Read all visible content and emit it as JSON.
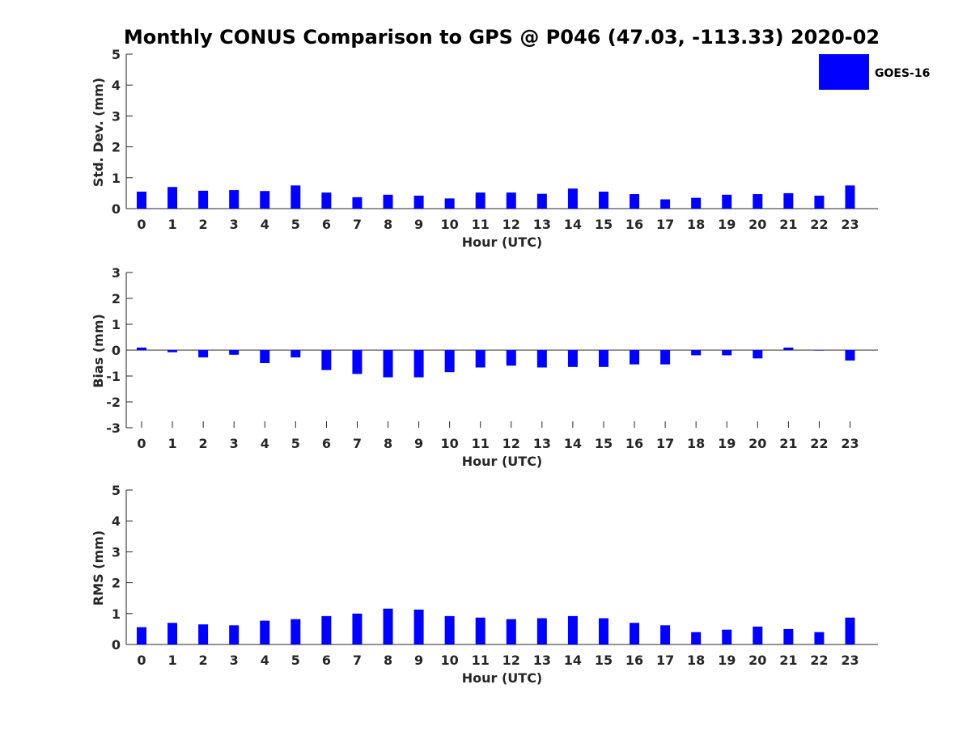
{
  "title": "Monthly CONUS Comparison to GPS @ P046 (47.03, -113.33) 2020-02",
  "legend": {
    "label": "GOES-16",
    "color": "#0000ff",
    "placement": "top-right"
  },
  "chart_data": [
    {
      "type": "bar",
      "xlabel": "Hour (UTC)",
      "ylabel": "Std. Dev. (mm)",
      "ylim": [
        0,
        5
      ],
      "yticks": [
        0,
        1,
        2,
        3,
        4,
        5
      ],
      "categories": [
        0,
        1,
        2,
        3,
        4,
        5,
        6,
        7,
        8,
        9,
        10,
        11,
        12,
        13,
        14,
        15,
        16,
        17,
        18,
        19,
        20,
        21,
        22,
        23
      ],
      "series": [
        {
          "name": "GOES-16",
          "values": [
            0.55,
            0.7,
            0.58,
            0.6,
            0.57,
            0.75,
            0.52,
            0.37,
            0.45,
            0.42,
            0.33,
            0.52,
            0.52,
            0.48,
            0.65,
            0.55,
            0.47,
            0.3,
            0.35,
            0.45,
            0.47,
            0.5,
            0.42,
            0.75
          ]
        }
      ],
      "grid": false
    },
    {
      "type": "bar",
      "xlabel": "Hour (UTC)",
      "ylabel": "Bias (mm)",
      "ylim": [
        -3,
        3
      ],
      "yticks": [
        -3,
        -2,
        -1,
        0,
        1,
        2,
        3
      ],
      "categories": [
        0,
        1,
        2,
        3,
        4,
        5,
        6,
        7,
        8,
        9,
        10,
        11,
        12,
        13,
        14,
        15,
        16,
        17,
        18,
        19,
        20,
        21,
        22,
        23
      ],
      "series": [
        {
          "name": "GOES-16",
          "values": [
            0.1,
            -0.08,
            -0.28,
            -0.18,
            -0.5,
            -0.28,
            -0.77,
            -0.92,
            -1.05,
            -1.05,
            -0.85,
            -0.67,
            -0.6,
            -0.67,
            -0.65,
            -0.65,
            -0.55,
            -0.55,
            -0.2,
            -0.2,
            -0.32,
            0.1,
            -0.02,
            -0.4
          ]
        }
      ],
      "grid": false
    },
    {
      "type": "bar",
      "xlabel": "Hour (UTC)",
      "ylabel": "RMS (mm)",
      "ylim": [
        0,
        5
      ],
      "yticks": [
        0,
        1,
        2,
        3,
        4,
        5
      ],
      "categories": [
        0,
        1,
        2,
        3,
        4,
        5,
        6,
        7,
        8,
        9,
        10,
        11,
        12,
        13,
        14,
        15,
        16,
        17,
        18,
        19,
        20,
        21,
        22,
        23
      ],
      "series": [
        {
          "name": "GOES-16",
          "values": [
            0.56,
            0.7,
            0.65,
            0.62,
            0.77,
            0.82,
            0.92,
            1.0,
            1.16,
            1.13,
            0.92,
            0.87,
            0.82,
            0.85,
            0.92,
            0.85,
            0.7,
            0.62,
            0.4,
            0.48,
            0.58,
            0.5,
            0.4,
            0.87
          ]
        }
      ],
      "grid": false
    }
  ]
}
